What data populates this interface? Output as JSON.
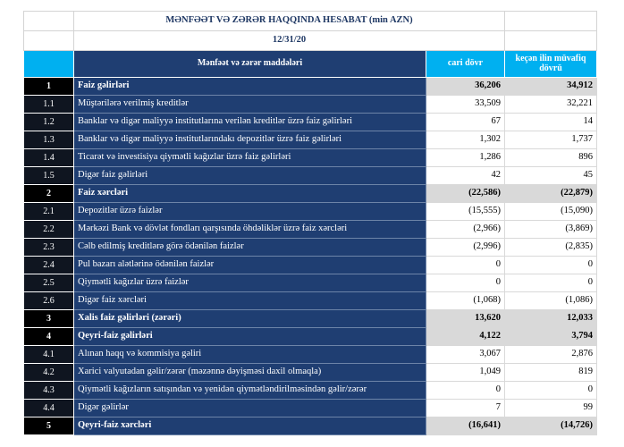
{
  "report": {
    "title": "MƏNFƏƏT VƏ ZƏRƏR HAQQINDA HESABAT (min AZN)",
    "date": "12/31/20"
  },
  "columns": {
    "item": "Mənfəət və zərər maddələri",
    "current": "cari dövr",
    "previous": "keçən ilin müvafiq dövrü"
  },
  "rows": [
    {
      "num": "1",
      "label": "Faiz  gəlirləri",
      "cur": "36,206",
      "prev": "34,912",
      "major": true
    },
    {
      "num": "1.1",
      "label": "Müştərilərə verilmiş kreditlər",
      "cur": "33,509",
      "prev": "32,221"
    },
    {
      "num": "1.2",
      "label": "Banklar və digər maliyyə institutlarına verilən kreditlər üzrə faiz gəlirləri",
      "cur": "67",
      "prev": "14"
    },
    {
      "num": "1.3",
      "label": "Banklar və digər maliyyə institutlarındakı depozitlər üzrə faiz gəlirləri",
      "cur": "1,302",
      "prev": "1,737"
    },
    {
      "num": "1.4",
      "label": "Ticarət və investisiya qiymətli kağızlar üzrə faiz gəlirləri",
      "cur": "1,286",
      "prev": "896"
    },
    {
      "num": "1.5",
      "label": "Digər faiz gəlirləri",
      "cur": "42",
      "prev": "45"
    },
    {
      "num": "2",
      "label": "Faiz xərcləri",
      "cur": "(22,586)",
      "prev": "(22,879)",
      "major": true
    },
    {
      "num": "2.1",
      "label": "Depozitlər üzrə faizlər",
      "cur": "(15,555)",
      "prev": "(15,090)"
    },
    {
      "num": "2.2",
      "label": "Mərkəzi Bank və dövlət fondları qarşısında öhdəliklər üzrə faiz xərcləri",
      "cur": "(2,966)",
      "prev": "(3,869)"
    },
    {
      "num": "2.3",
      "label": "Cəlb edilmiş kreditlərə görə ödənilən faizlər",
      "cur": "(2,996)",
      "prev": "(2,835)"
    },
    {
      "num": "2.4",
      "label": "Pul bazarı alətlərinə ödənilən faizlər",
      "cur": "0",
      "prev": "0"
    },
    {
      "num": "2.5",
      "label": "Qiymətli kağızlar üzrə faizlər",
      "cur": "0",
      "prev": "0"
    },
    {
      "num": "2.6",
      "label": "Digər faiz xərcləri",
      "cur": "(1,068)",
      "prev": "(1,086)"
    },
    {
      "num": "3",
      "label": "Xalis faiz gəlirləri (zərəri)",
      "cur": "13,620",
      "prev": "12,033",
      "major": true
    },
    {
      "num": "4",
      "label": "Qeyri-faiz gəlirləri",
      "cur": "4,122",
      "prev": "3,794",
      "major": true
    },
    {
      "num": "4.1",
      "label": "Alınan haqq və kommisiya gəliri",
      "cur": "3,067",
      "prev": "2,876"
    },
    {
      "num": "4.2",
      "label": "Xarici valyutadan gəlir/zərər (məzənnə dəyişməsi daxil olmaqla)",
      "cur": "1,049",
      "prev": "819"
    },
    {
      "num": "4.3",
      "label": "Qiymətli kağızların satışından və yenidən qiymətləndirilməsindən gəlir/zərər",
      "cur": "0",
      "prev": "0"
    },
    {
      "num": "4.4",
      "label": "Digər gəlirlər",
      "cur": "7",
      "prev": "99"
    },
    {
      "num": "5",
      "label": "Qeyri-faiz xərcləri",
      "cur": "(16,641)",
      "prev": "(14,726)",
      "major": true
    }
  ]
}
